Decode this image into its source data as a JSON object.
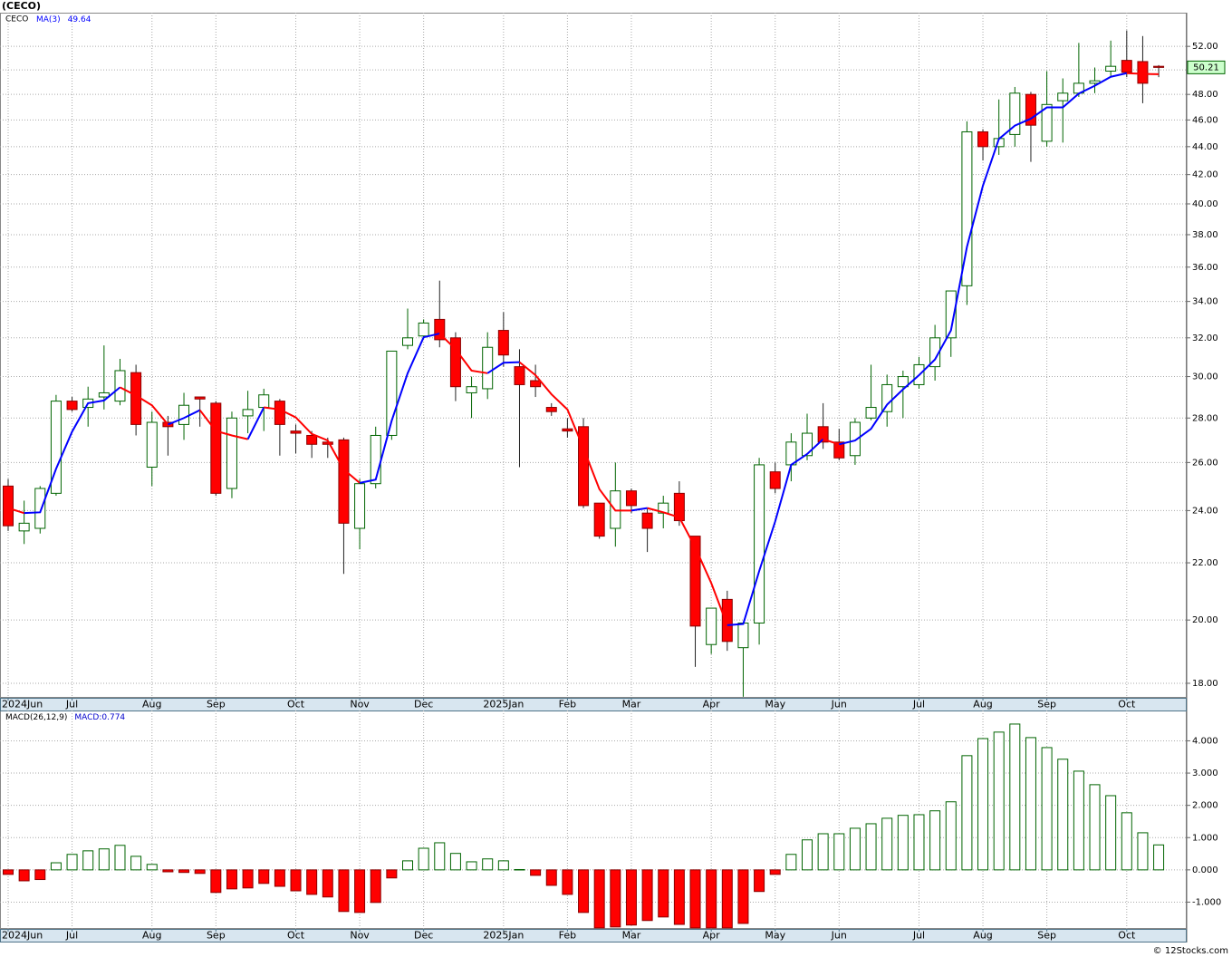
{
  "chart_data": [
    {
      "type": "candlestick",
      "title": "(CECO)",
      "ticker": "CECO",
      "categories": [
        "2024Jun",
        null,
        null,
        null,
        "Jul",
        null,
        null,
        null,
        null,
        "Aug",
        null,
        null,
        null,
        "Sep",
        null,
        null,
        null,
        null,
        "Oct",
        null,
        null,
        null,
        "Nov",
        null,
        null,
        null,
        "Dec",
        null,
        null,
        null,
        null,
        "2025Jan",
        null,
        null,
        null,
        "Feb",
        null,
        null,
        null,
        "Mar",
        null,
        null,
        null,
        null,
        "Apr",
        null,
        null,
        null,
        "May",
        null,
        null,
        null,
        "Jun",
        null,
        null,
        null,
        null,
        "Jul",
        null,
        null,
        null,
        "Aug",
        null,
        null,
        null,
        "Sep",
        null,
        null,
        null,
        null,
        "Oct",
        null,
        null
      ],
      "open": [
        25.0,
        23.2,
        23.3,
        24.7,
        28.8,
        28.5,
        29.0,
        28.8,
        30.2,
        25.8,
        27.8,
        27.7,
        29.0,
        28.7,
        24.9,
        28.1,
        28.5,
        28.8,
        27.4,
        27.2,
        26.9,
        27.0,
        23.3,
        25.1,
        27.2,
        31.6,
        32.1,
        33.0,
        32.0,
        29.2,
        29.4,
        32.4,
        30.5,
        29.8,
        28.5,
        27.5,
        27.6,
        24.3,
        23.3,
        24.8,
        23.9,
        23.9,
        24.7,
        23.0,
        19.2,
        20.7,
        19.1,
        19.9,
        25.6,
        25.9,
        26.3,
        27.6,
        26.9,
        26.3,
        28.0,
        28.3,
        29.5,
        29.6,
        30.5,
        32.0,
        34.9,
        45.1,
        44.0,
        44.9,
        48.0,
        44.4,
        47.5,
        48.1,
        48.9,
        49.9,
        50.8,
        50.7,
        50.3
      ],
      "high": [
        25.3,
        24.4,
        25.0,
        29.1,
        29.0,
        29.5,
        31.6,
        30.9,
        30.6,
        28.3,
        28.1,
        29.2,
        29.0,
        28.8,
        28.3,
        29.3,
        29.4,
        28.9,
        27.7,
        27.4,
        27.1,
        27.1,
        25.3,
        27.6,
        31.3,
        33.6,
        33.0,
        35.2,
        32.3,
        30.0,
        32.3,
        33.4,
        31.4,
        30.6,
        28.7,
        28.0,
        28.0,
        24.3,
        26.0,
        24.9,
        24.1,
        24.6,
        25.2,
        23.0,
        20.4,
        21.0,
        19.9,
        26.2,
        26.0,
        27.3,
        28.2,
        28.7,
        27.5,
        28.0,
        30.6,
        30.1,
        30.3,
        31.0,
        32.7,
        34.6,
        45.9,
        45.3,
        47.6,
        48.6,
        48.2,
        49.9,
        49.3,
        52.3,
        50.2,
        52.5,
        53.4,
        52.9,
        50.4
      ],
      "low": [
        23.2,
        22.7,
        23.1,
        24.6,
        28.3,
        27.6,
        28.4,
        28.6,
        27.2,
        25.0,
        26.3,
        27.0,
        27.6,
        24.6,
        24.5,
        27.3,
        27.4,
        26.3,
        26.4,
        26.2,
        26.2,
        21.6,
        22.5,
        24.9,
        27.0,
        31.4,
        32.0,
        31.5,
        28.8,
        28.0,
        28.9,
        30.5,
        25.8,
        29.0,
        28.1,
        27.1,
        24.1,
        22.9,
        22.6,
        23.9,
        22.4,
        23.3,
        23.4,
        18.5,
        18.9,
        19.0,
        17.6,
        19.2,
        24.7,
        25.2,
        26.1,
        26.6,
        26.1,
        25.9,
        27.9,
        27.6,
        28.0,
        29.4,
        29.8,
        31.0,
        33.8,
        43.0,
        43.4,
        44.0,
        42.9,
        44.0,
        44.3,
        47.8,
        48.1,
        49.5,
        49.4,
        47.3,
        49.4
      ],
      "close": [
        23.4,
        23.5,
        24.9,
        28.8,
        28.4,
        28.9,
        29.2,
        30.3,
        27.7,
        27.8,
        27.6,
        28.6,
        28.9,
        24.7,
        28.0,
        28.4,
        29.1,
        27.7,
        27.3,
        26.8,
        26.8,
        23.5,
        25.1,
        27.2,
        31.3,
        32.0,
        32.8,
        31.9,
        29.5,
        29.5,
        31.5,
        31.1,
        29.6,
        29.5,
        28.3,
        27.4,
        24.2,
        23.0,
        24.8,
        24.2,
        23.3,
        24.3,
        23.6,
        19.8,
        20.4,
        19.3,
        19.9,
        25.9,
        24.9,
        26.9,
        27.3,
        26.9,
        26.2,
        27.8,
        28.5,
        29.6,
        30.0,
        30.6,
        32.0,
        34.6,
        45.1,
        44.0,
        44.6,
        48.1,
        45.6,
        47.2,
        48.1,
        48.9,
        49.1,
        50.3,
        49.8,
        48.9,
        50.21
      ],
      "up_color": "#006400",
      "down_color": "#ff0000",
      "ma": {
        "name": "MA(3)",
        "up_color": "#0000ff",
        "down_color": "#ff0000",
        "values": [
          24.1,
          23.9,
          23.93,
          25.73,
          27.37,
          28.7,
          28.83,
          29.47,
          29.07,
          28.6,
          27.7,
          28.0,
          28.37,
          27.4,
          27.2,
          27.03,
          28.5,
          28.4,
          28.03,
          27.27,
          26.97,
          25.7,
          25.13,
          25.27,
          27.87,
          30.17,
          32.03,
          32.23,
          31.4,
          30.3,
          30.17,
          30.7,
          30.73,
          30.07,
          29.13,
          28.4,
          26.63,
          24.87,
          24.0,
          24.0,
          24.1,
          23.93,
          23.73,
          22.57,
          21.27,
          19.83,
          19.87,
          21.7,
          23.57,
          25.9,
          26.37,
          27.03,
          26.8,
          26.97,
          27.5,
          28.63,
          29.37,
          30.07,
          30.87,
          32.4,
          37.23,
          41.23,
          44.57,
          45.57,
          46.1,
          46.97,
          46.97,
          48.07,
          48.7,
          49.43,
          49.73,
          49.67,
          49.64
        ]
      },
      "log_scale": true,
      "ylim": [
        17.57,
        55
      ],
      "yticks": [
        {
          "value": 18,
          "label": "18.00"
        },
        {
          "value": 20,
          "label": "20.00"
        },
        {
          "value": 22,
          "label": "22.00"
        },
        {
          "value": 24,
          "label": "24.00"
        },
        {
          "value": 26,
          "label": "26.00"
        },
        {
          "value": 28,
          "label": "28.00"
        },
        {
          "value": 30,
          "label": "30.00"
        },
        {
          "value": 32,
          "label": "32.00"
        },
        {
          "value": 34,
          "label": "34.00"
        },
        {
          "value": 36,
          "label": "36.00"
        },
        {
          "value": 38,
          "label": "38.00"
        },
        {
          "value": 40,
          "label": "40.00"
        },
        {
          "value": 42,
          "label": "42.00"
        },
        {
          "value": 44,
          "label": "44.00"
        },
        {
          "value": 46,
          "label": "46.00"
        },
        {
          "value": 48,
          "label": "48.00"
        },
        {
          "value": 50,
          "label": "50.00"
        },
        {
          "value": 52,
          "label": "52.00"
        }
      ],
      "grid": true
    },
    {
      "type": "bar",
      "name": "MACD(26,12,9)",
      "value_name": "MACD:",
      "categories": [
        "2024Jun",
        null,
        null,
        null,
        "Jul",
        null,
        null,
        null,
        null,
        "Aug",
        null,
        null,
        null,
        "Sep",
        null,
        null,
        null,
        null,
        "Oct",
        null,
        null,
        null,
        "Nov",
        null,
        null,
        null,
        "Dec",
        null,
        null,
        null,
        null,
        "2025Jan",
        null,
        null,
        null,
        "Feb",
        null,
        null,
        null,
        "Mar",
        null,
        null,
        null,
        null,
        "Apr",
        null,
        null,
        null,
        "May",
        null,
        null,
        null,
        "Jun",
        null,
        null,
        null,
        null,
        "Jul",
        null,
        null,
        null,
        "Aug",
        null,
        null,
        null,
        "Sep",
        null,
        null,
        null,
        null,
        "Oct",
        null,
        null
      ],
      "values": [
        -0.14,
        -0.34,
        -0.3,
        0.22,
        0.48,
        0.59,
        0.65,
        0.76,
        0.42,
        0.17,
        -0.06,
        -0.08,
        -0.11,
        -0.7,
        -0.59,
        -0.56,
        -0.42,
        -0.51,
        -0.65,
        -0.76,
        -0.84,
        -1.29,
        -1.32,
        -1.01,
        -0.25,
        0.28,
        0.67,
        0.84,
        0.51,
        0.25,
        0.34,
        0.28,
        0.01,
        -0.17,
        -0.48,
        -0.76,
        -1.32,
        -1.8,
        -1.77,
        -1.71,
        -1.57,
        -1.46,
        -1.69,
        -1.8,
        -1.8,
        -1.8,
        -1.66,
        -0.67,
        -0.14,
        0.48,
        0.93,
        1.12,
        1.12,
        1.29,
        1.43,
        1.6,
        1.69,
        1.71,
        1.83,
        2.11,
        3.54,
        4.07,
        4.27,
        4.52,
        4.1,
        3.79,
        3.43,
        3.06,
        2.64,
        2.3,
        1.77,
        1.15,
        0.774
      ],
      "up_color": "#006400",
      "down_color": "#ff0000",
      "ylim": [
        -1.83,
        4.94
      ],
      "yticks": [
        {
          "value": -1,
          "label": "-1.000"
        },
        {
          "value": 0,
          "label": "0.000"
        },
        {
          "value": 1,
          "label": "1.000"
        },
        {
          "value": 2,
          "label": "2.000"
        },
        {
          "value": 3,
          "label": "3.000"
        },
        {
          "value": 4,
          "label": "4.000"
        }
      ],
      "grid": true
    }
  ],
  "footer": "© 12Stocks.com"
}
